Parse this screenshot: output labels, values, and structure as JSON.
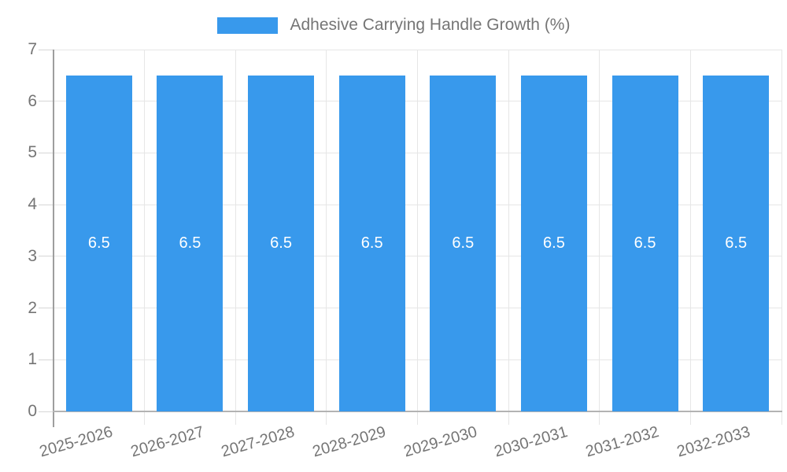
{
  "legend": {
    "label": "Adhesive Carrying Handle Growth (%)"
  },
  "chart_data": {
    "type": "bar",
    "title": "Adhesive Carrying Handle Growth (%)",
    "categories": [
      "2025-2026",
      "2026-2027",
      "2027-2028",
      "2028-2029",
      "2029-2030",
      "2030-2031",
      "2031-2032",
      "2032-2033"
    ],
    "values": [
      6.5,
      6.5,
      6.5,
      6.5,
      6.5,
      6.5,
      6.5,
      6.5
    ],
    "bar_labels": [
      "6.5",
      "6.5",
      "6.5",
      "6.5",
      "6.5",
      "6.5",
      "6.5",
      "6.5"
    ],
    "xlabel": "",
    "ylabel": "",
    "ylim": [
      0,
      7
    ],
    "yticks": [
      0,
      1,
      2,
      3,
      4,
      5,
      6,
      7
    ],
    "grid": true,
    "legend_position": "top-center",
    "bar_value_labels_inside": true,
    "colors": {
      "bar": "#3899ec",
      "text": "#757575",
      "bar_label_text": "#ffffff",
      "gridline": "#e6e6e6",
      "y_axis_line": "#9e9e9e",
      "x_axis_line": "#b3b3b3"
    }
  }
}
